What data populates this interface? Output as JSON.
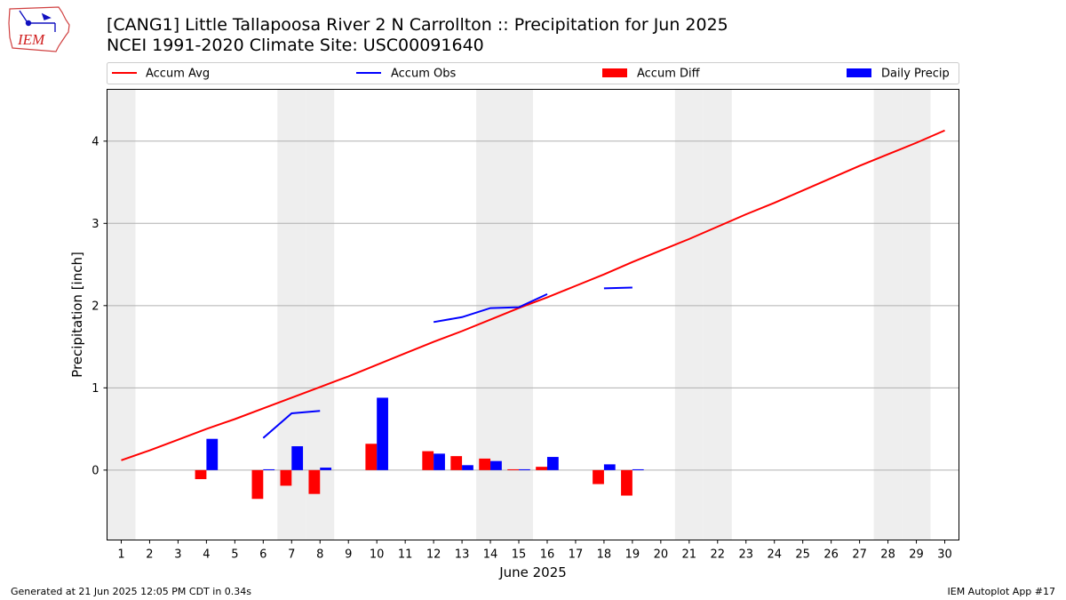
{
  "header": {
    "title": "[CANG1] Little Tallapoosa River 2 N Carrollton :: Precipitation for Jun 2025",
    "subtitle": "NCEI 1991-2020 Climate Site: USC00091640"
  },
  "logo": {
    "text": "IEM",
    "icon": "iem-iowa-logo"
  },
  "footer": {
    "generated": "Generated at 21 Jun 2025 12:05 PM CDT in 0.34s",
    "app": "IEM Autoplot App #17"
  },
  "colors": {
    "avg": "#ff0000",
    "obs": "#0000ff",
    "diff": "#ff0000",
    "daily": "#0000ff",
    "weekend": "#eeeeee",
    "grid": "#b0b0b0"
  },
  "chart_data": {
    "type": "bar",
    "xlabel": "June 2025",
    "ylabel": "Precipitation [inch]",
    "xlim": [
      0.5,
      30.5
    ],
    "ylim": [
      -0.85,
      4.63
    ],
    "yticks": [
      0,
      1,
      2,
      3,
      4
    ],
    "days": [
      1,
      2,
      3,
      4,
      5,
      6,
      7,
      8,
      9,
      10,
      11,
      12,
      13,
      14,
      15,
      16,
      17,
      18,
      19,
      20,
      21,
      22,
      23,
      24,
      25,
      26,
      27,
      28,
      29,
      30
    ],
    "weekend_days": [
      1,
      7,
      8,
      14,
      15,
      21,
      22,
      28,
      29
    ],
    "grid": true,
    "legend_position": "top",
    "legend": [
      "Accum Avg",
      "Accum Obs",
      "Accum Diff",
      "Daily Precip"
    ],
    "series": [
      {
        "name": "Accum Avg",
        "kind": "line",
        "values": [
          0.12,
          0.24,
          0.37,
          0.5,
          0.62,
          0.75,
          0.88,
          1.01,
          1.14,
          1.28,
          1.42,
          1.56,
          1.69,
          1.83,
          1.97,
          2.1,
          2.24,
          2.38,
          2.53,
          2.67,
          2.81,
          2.96,
          3.11,
          3.25,
          3.4,
          3.55,
          3.7,
          3.84,
          3.98,
          4.13
        ]
      },
      {
        "name": "Accum Obs",
        "kind": "line",
        "values": [
          null,
          null,
          null,
          null,
          null,
          0.39,
          0.69,
          0.72,
          null,
          null,
          null,
          1.8,
          1.86,
          1.97,
          1.98,
          2.14,
          null,
          2.21,
          2.22,
          null,
          null,
          null,
          null,
          null,
          null,
          null,
          null,
          null,
          null,
          null
        ]
      },
      {
        "name": "Accum Diff",
        "kind": "bar",
        "values": [
          null,
          null,
          null,
          -0.11,
          null,
          -0.35,
          -0.19,
          -0.29,
          null,
          0.32,
          null,
          0.23,
          0.17,
          0.14,
          0.01,
          0.04,
          null,
          -0.17,
          -0.31,
          null,
          null,
          null,
          null,
          null,
          null,
          null,
          null,
          null,
          null,
          null
        ]
      },
      {
        "name": "Daily Precip",
        "kind": "bar",
        "values": [
          null,
          null,
          null,
          0.38,
          null,
          0.01,
          0.29,
          0.03,
          null,
          0.88,
          null,
          0.2,
          0.06,
          0.11,
          0.01,
          0.16,
          null,
          0.07,
          0.01,
          null,
          null,
          null,
          null,
          null,
          null,
          null,
          null,
          null,
          null,
          null
        ]
      }
    ]
  }
}
